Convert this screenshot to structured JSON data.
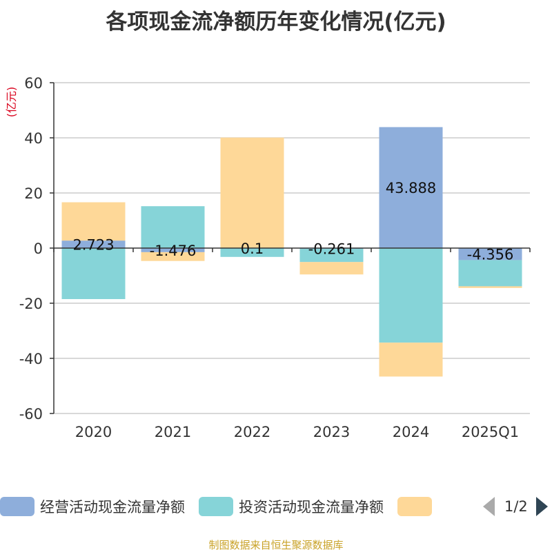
{
  "title": "各项现金流净额历年变化情况(亿元)",
  "source": "制图数据来自恒生聚源数据库",
  "pager": {
    "text": "1/2"
  },
  "legend": [
    {
      "label": "经营活动现金流量净额",
      "color": "#8eaedb"
    },
    {
      "label": "投资活动现金流量净额",
      "color": "#86d4d8"
    },
    {
      "label": "",
      "color": "#fed898"
    }
  ],
  "chart_data": {
    "type": "bar",
    "stacked": true,
    "title": "各项现金流净额历年变化情况(亿元)",
    "ylabel": "(亿元)",
    "ylim": [
      -60,
      60
    ],
    "yticks": [
      -60,
      -40,
      -20,
      0,
      20,
      40,
      60
    ],
    "grid": true,
    "categories": [
      "2020",
      "2021",
      "2022",
      "2023",
      "2024",
      "2025Q1"
    ],
    "series": [
      {
        "name": "经营活动现金流量净额",
        "color": "#8eaedb",
        "values": [
          2.723,
          -1.476,
          0.1,
          -0.261,
          43.888,
          -4.356
        ],
        "labels": [
          "2.723",
          "-1.476",
          "0.1",
          "-0.261",
          "43.888",
          "-4.356"
        ]
      },
      {
        "name": "投资活动现金流量净额",
        "color": "#86d4d8",
        "values": [
          -18.5,
          15.2,
          -3.2,
          -4.8,
          -34.3,
          -9.5
        ]
      },
      {
        "name": "",
        "color": "#fed898",
        "values": [
          13.9,
          -3.2,
          40.0,
          -4.5,
          -12.3,
          -0.6
        ]
      }
    ]
  }
}
